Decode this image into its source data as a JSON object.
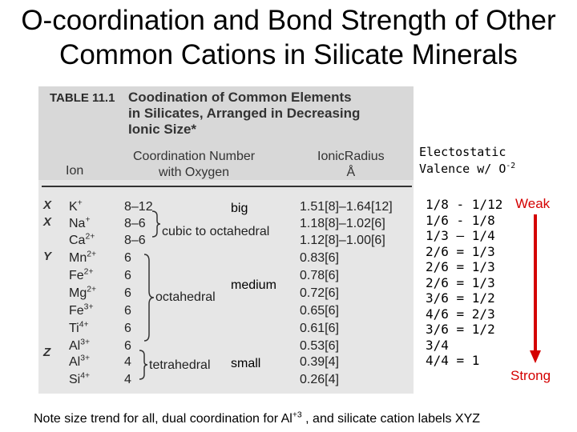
{
  "title": {
    "line1": "O-coordination and Bond Strength of Other",
    "line2": "Common Cations in Silicate Minerals"
  },
  "table": {
    "label": "TABLE 11.1",
    "caption": [
      "Coodination of Common Elements",
      "in Silicates, Arranged in Decreasing",
      "Ionic Size*"
    ],
    "col_ion": "Ion",
    "col_cn": [
      "Coordination Number",
      "with Oxygen"
    ],
    "col_ir": [
      "IonicRadius",
      "Å"
    ],
    "class_labels": [
      "X",
      "X",
      "Y",
      "Z"
    ],
    "rows": [
      {
        "ion": "K",
        "charge": "+",
        "cn": "8–12",
        "radius": "1.51[8]–1.64[12]"
      },
      {
        "ion": "Na",
        "charge": "+",
        "cn": "8–6",
        "radius": "1.18[8]–1.02[6]"
      },
      {
        "ion": "Ca",
        "charge": "2+",
        "cn": "8–6",
        "radius": "1.12[8]–1.00[6]"
      },
      {
        "ion": "Mn",
        "charge": "2+",
        "cn": "6",
        "radius": "0.83[6]"
      },
      {
        "ion": "Fe",
        "charge": "2+",
        "cn": "6",
        "radius": "0.78[6]"
      },
      {
        "ion": "Mg",
        "charge": "2+",
        "cn": "6",
        "radius": "0.72[6]"
      },
      {
        "ion": "Fe",
        "charge": "3+",
        "cn": "6",
        "radius": "0.65[6]"
      },
      {
        "ion": "Ti",
        "charge": "4+",
        "cn": "6",
        "radius": "0.61[6]"
      },
      {
        "ion": "Al",
        "charge": "3+",
        "cn": "6",
        "radius": "0.53[6]"
      },
      {
        "ion": "Al",
        "charge": "3+",
        "cn": "4",
        "radius": "0.39[4]"
      },
      {
        "ion": "Si",
        "charge": "4+",
        "cn": "4",
        "radius": "0.26[4]"
      }
    ],
    "groups": {
      "cubic": "cubic to octahedral",
      "octa": "octahedral",
      "tetra": "tetrahedral"
    }
  },
  "size_labels": {
    "big": "big",
    "medium": "medium",
    "small": "small"
  },
  "valence": {
    "head1": "Electostatic",
    "head2": "Valence w/ O",
    "head2_sup": "-2",
    "values": [
      "1/8 - 1/12",
      "1/6 - 1/8",
      "1/3 – 1/4",
      "2/6 = 1/3",
      "2/6 = 1/3",
      "2/6 = 1/3",
      "3/6 = 1/2",
      "4/6 = 2/3",
      "3/6 = 1/2",
      "3/4",
      "4/4 =  1"
    ],
    "weak": "Weak",
    "strong": "Strong"
  },
  "note": {
    "pre": "Note size trend for all, dual coordination for Al",
    "sup": "+3",
    "post": " , and silicate cation labels XYZ"
  },
  "colors": {
    "arrow": "#d40000",
    "accent": "#d40000"
  }
}
